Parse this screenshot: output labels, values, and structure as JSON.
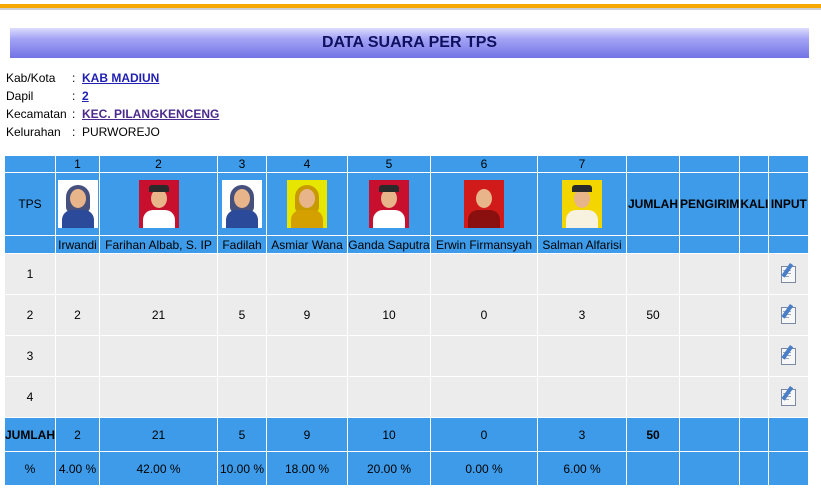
{
  "page": {
    "title": "DATA SUARA PER TPS"
  },
  "info": [
    {
      "label": "Kab/Kota",
      "value": "KAB MADIUN",
      "link": true
    },
    {
      "label": "Dapil",
      "value": "2",
      "link": true
    },
    {
      "label": "Kecamatan",
      "value": "KEC. PILANGKENCENG",
      "link": true
    },
    {
      "label": "Kelurahan",
      "value": "PURWOREJO",
      "link": false
    }
  ],
  "table": {
    "tps_header": "TPS",
    "jumlah_header": "JUMLAH",
    "pengirim_header": "PENGIRIM",
    "kali_header": "KALI",
    "input_header": "INPUT",
    "candidates": [
      {
        "no": "1",
        "name": "Irwandi",
        "bg": "#ffffff",
        "body": "#2b4a9a",
        "style": "hijab"
      },
      {
        "no": "2",
        "name": "Farihan Albab, S. IP",
        "bg": "#c8102e",
        "body": "#ffffff",
        "style": "cap"
      },
      {
        "no": "3",
        "name": "Fadilah",
        "bg": "#ffffff",
        "body": "#2b4a9a",
        "style": "hijab"
      },
      {
        "no": "4",
        "name": "Asmiar Wana",
        "bg": "#e6e600",
        "body": "#d4a000",
        "style": "hijab"
      },
      {
        "no": "5",
        "name": "Ganda Saputra",
        "bg": "#c8102e",
        "body": "#ffffff",
        "style": "cap"
      },
      {
        "no": "6",
        "name": "Erwin Firmansyah",
        "bg": "#d11a1a",
        "body": "#8a0f0f",
        "style": "plain"
      },
      {
        "no": "7",
        "name": "Salman Alfarisi",
        "bg": "#f3d600",
        "body": "#f7f2e0",
        "style": "cap"
      }
    ],
    "rows": [
      {
        "tps": "1",
        "votes": [
          "",
          "",
          "",
          "",
          "",
          "",
          ""
        ],
        "jumlah": "",
        "pengirim": "",
        "kali": ""
      },
      {
        "tps": "2",
        "votes": [
          "2",
          "21",
          "5",
          "9",
          "10",
          "0",
          "3"
        ],
        "jumlah": "50",
        "pengirim": "",
        "kali": ""
      },
      {
        "tps": "3",
        "votes": [
          "",
          "",
          "",
          "",
          "",
          "",
          ""
        ],
        "jumlah": "",
        "pengirim": "",
        "kali": ""
      },
      {
        "tps": "4",
        "votes": [
          "",
          "",
          "",
          "",
          "",
          "",
          ""
        ],
        "jumlah": "",
        "pengirim": "",
        "kali": ""
      }
    ],
    "total_label": "JUMLAH",
    "totals": [
      "2",
      "21",
      "5",
      "9",
      "10",
      "0",
      "3"
    ],
    "total_jumlah": "50",
    "percent_label": "%",
    "percents": [
      "4.00 %",
      "42.00 %",
      "10.00 %",
      "18.00 %",
      "20.00 %",
      "0.00 %",
      "6.00 %"
    ]
  }
}
